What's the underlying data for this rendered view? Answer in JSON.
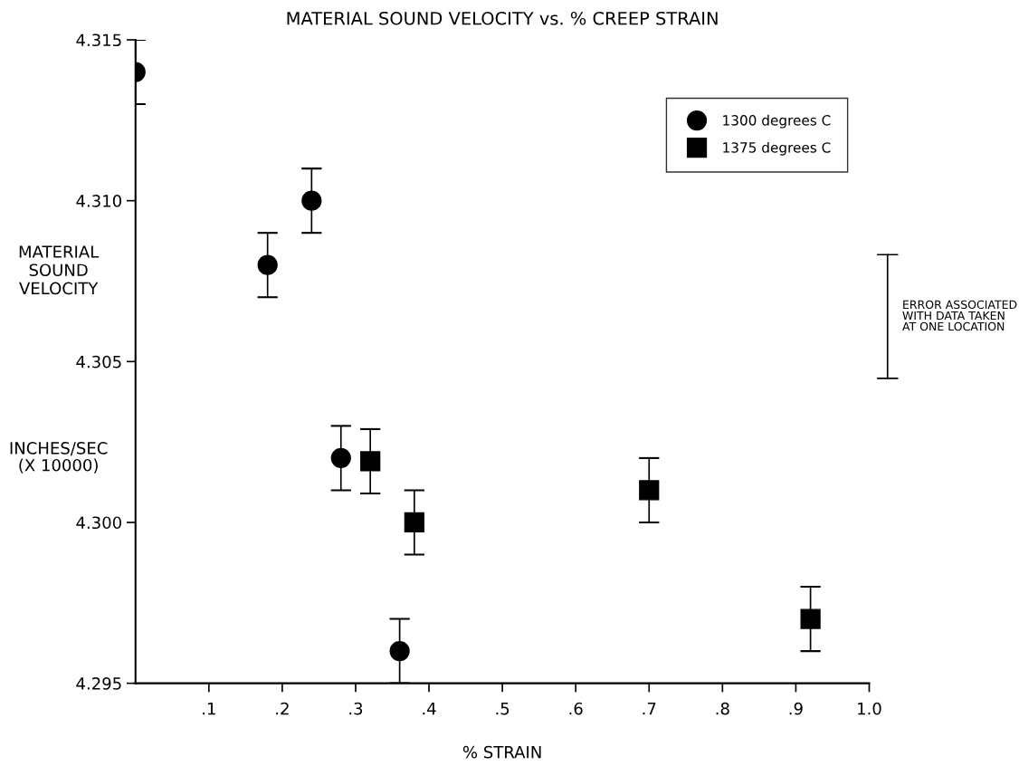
{
  "chart_data": {
    "type": "scatter",
    "title": "MATERIAL SOUND VELOCITY vs. % CREEP STRAIN",
    "xlabel": "% STRAIN",
    "ylabel": "MATERIAL\nSOUND\nVELOCITY",
    "annotations": [
      "INCHES/SEC\n(X 10000)",
      "ERROR ASSOCIATED\nWITH DATA TAKEN\nAT ONE LOCATION"
    ],
    "series": [
      {
        "name": "1300 degrees C",
        "color": "#000000",
        "marker": "circle",
        "x": [
          0,
          0.18,
          0.24,
          0.28,
          0.36
        ],
        "values": [
          4.314,
          4.308,
          4.31,
          4.302,
          4.296
        ],
        "errors": [
          0.001,
          0.001,
          0.001,
          0.001,
          0.001
        ]
      },
      {
        "name": "1375 degrees C",
        "color": "#000000",
        "marker": "square",
        "x": [
          0.32,
          0.38,
          0.7,
          0.92
        ],
        "values": [
          4.3019,
          4.3,
          4.301,
          4.297
        ],
        "errors": [
          0.001,
          0.001,
          0.001,
          0.001
        ]
      }
    ],
    "xlim": [
      0,
      1.0
    ],
    "ylim": [
      4.295,
      4.315
    ],
    "xticks": [
      {
        "value": 0.1,
        "label": ".1"
      },
      {
        "value": 0.2,
        "label": ".2"
      },
      {
        "value": 0.3,
        "label": ".3"
      },
      {
        "value": 0.4,
        "label": ".4"
      },
      {
        "value": 0.5,
        "label": ".5"
      },
      {
        "value": 0.6,
        "label": ".6"
      },
      {
        "value": 0.7,
        "label": ".7"
      },
      {
        "value": 0.8,
        "label": ".8"
      },
      {
        "value": 0.9,
        "label": ".9"
      },
      {
        "value": 1.0,
        "label": "1.0"
      }
    ],
    "yticks": [
      4.295,
      {
        "value": 4.3,
        "label": "4.300"
      },
      4.305,
      {
        "value": 4.31,
        "label": "4.310"
      },
      4.315
    ],
    "grid": false,
    "legend": "top right"
  }
}
